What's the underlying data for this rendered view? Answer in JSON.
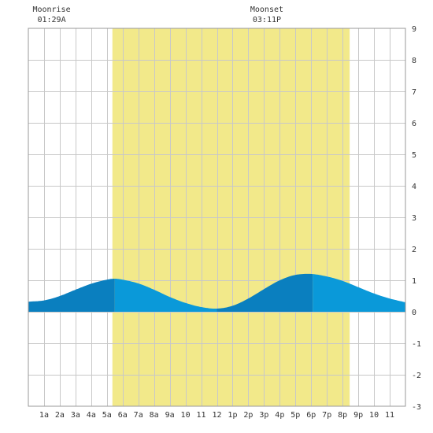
{
  "chart_data": {
    "type": "area",
    "title": "",
    "xlabel": "",
    "ylabel": "",
    "xlim": [
      0,
      24
    ],
    "ylim": [
      -3,
      9
    ],
    "grid": true,
    "x_tick_labels": [
      {
        "x": 1,
        "label": "1a"
      },
      {
        "x": 2,
        "label": "2a"
      },
      {
        "x": 3,
        "label": "3a"
      },
      {
        "x": 4,
        "label": "4a"
      },
      {
        "x": 5,
        "label": "5a"
      },
      {
        "x": 6,
        "label": "6a"
      },
      {
        "x": 7,
        "label": "7a"
      },
      {
        "x": 8,
        "label": "8a"
      },
      {
        "x": 9,
        "label": "9a"
      },
      {
        "x": 10,
        "label": "10"
      },
      {
        "x": 11,
        "label": "11"
      },
      {
        "x": 12,
        "label": "12"
      },
      {
        "x": 13,
        "label": "1p"
      },
      {
        "x": 14,
        "label": "2p"
      },
      {
        "x": 15,
        "label": "3p"
      },
      {
        "x": 16,
        "label": "4p"
      },
      {
        "x": 17,
        "label": "5p"
      },
      {
        "x": 18,
        "label": "6p"
      },
      {
        "x": 19,
        "label": "7p"
      },
      {
        "x": 20,
        "label": "8p"
      },
      {
        "x": 21,
        "label": "9p"
      },
      {
        "x": 22,
        "label": "10"
      },
      {
        "x": 23,
        "label": "11"
      }
    ],
    "y_ticks": [
      -3,
      -2,
      -1,
      0,
      1,
      2,
      3,
      4,
      5,
      6,
      7,
      8,
      9
    ],
    "daylight": {
      "start": 5.35,
      "end": 20.45
    },
    "moon_events": [
      {
        "label": "Moonrise",
        "time": "01:29A",
        "x": 1.48
      },
      {
        "label": "Moonset",
        "time": "03:11P",
        "x": 15.18
      }
    ],
    "tide_series": {
      "x": [
        0,
        1,
        2,
        3,
        4,
        5,
        5.5,
        6,
        7,
        8,
        9,
        10,
        11,
        12,
        13,
        14,
        15,
        16,
        17,
        18,
        19,
        20,
        21,
        22,
        23,
        24
      ],
      "y": [
        0.32,
        0.36,
        0.5,
        0.7,
        0.89,
        1.02,
        1.05,
        1.02,
        0.9,
        0.7,
        0.47,
        0.28,
        0.15,
        0.1,
        0.19,
        0.42,
        0.72,
        1.0,
        1.17,
        1.2,
        1.12,
        0.98,
        0.78,
        0.58,
        0.42,
        0.3
      ]
    },
    "rising_segments": [
      [
        0,
        5.5
      ],
      [
        12,
        18.1
      ]
    ],
    "colors": {
      "daylight": "#f2e98a",
      "rising": "#0a7fbf",
      "falling": "#0a99d9",
      "grid": "#c8c8c8",
      "frame": "#999999",
      "text": "#333333"
    }
  }
}
